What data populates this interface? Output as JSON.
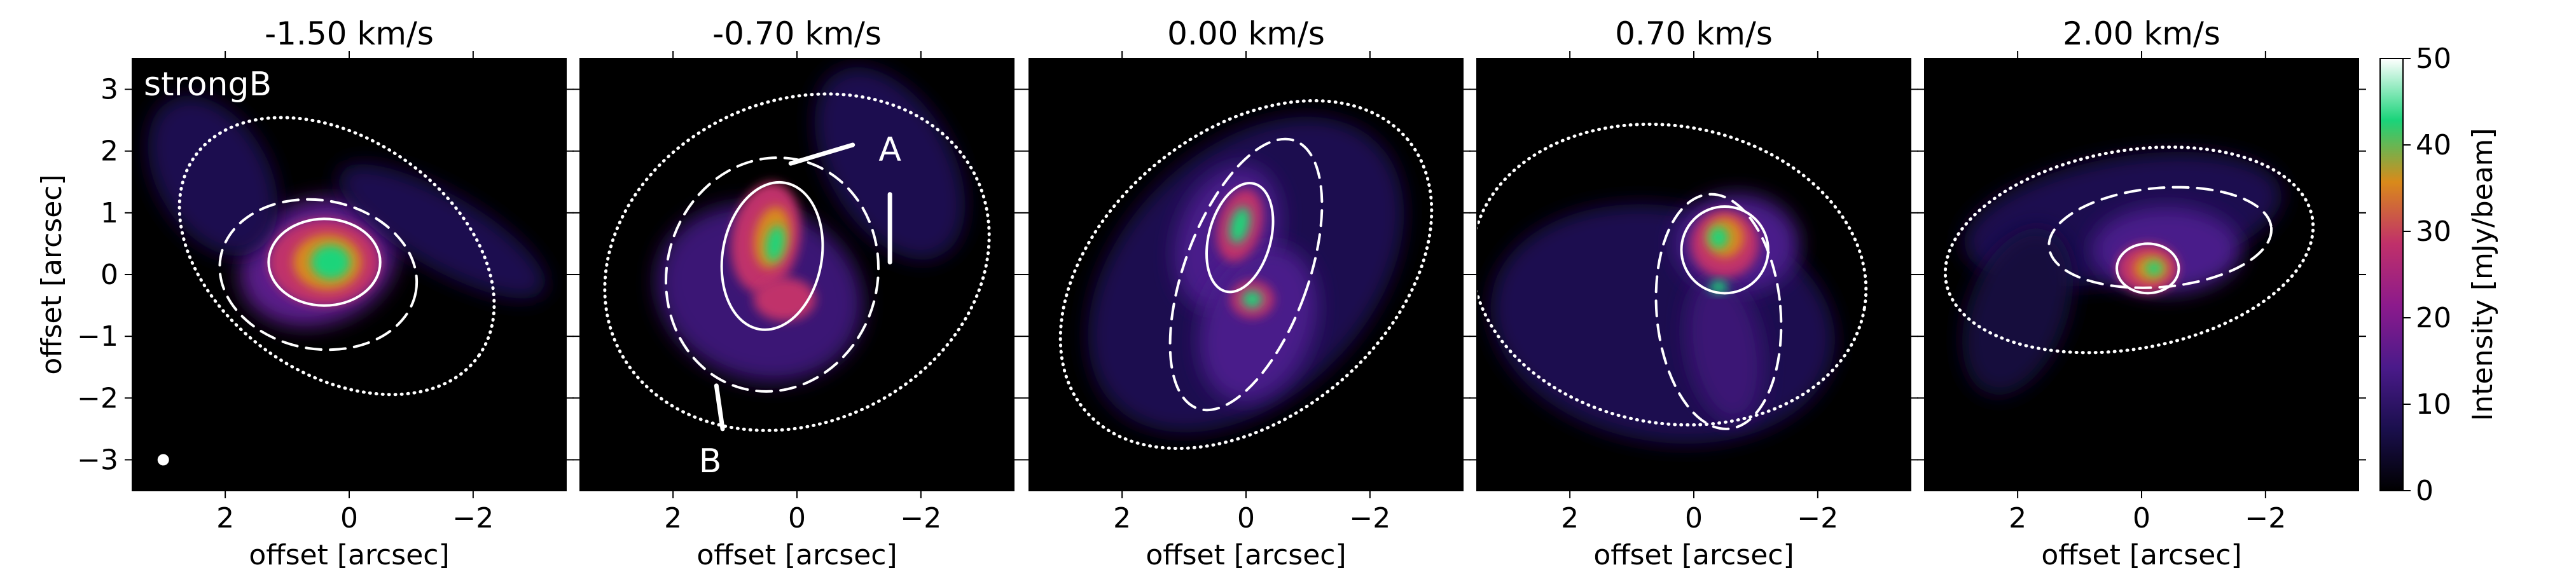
{
  "chart_data": {
    "type": "heatmap",
    "panels": [
      {
        "title": "-1.50 km/s",
        "velocity": -1.5,
        "annotation": "strongB"
      },
      {
        "title": "-0.70 km/s",
        "velocity": -0.7,
        "annotation": ""
      },
      {
        "title": "0.00 km/s",
        "velocity": 0.0,
        "annotation": ""
      },
      {
        "title": "0.70 km/s",
        "velocity": 0.7,
        "annotation": ""
      },
      {
        "title": "2.00 km/s",
        "velocity": 2.0,
        "annotation": ""
      }
    ],
    "xlabel": "offset [arcsec]",
    "ylabel": "offset [arcsec]",
    "xlim": [
      3.5,
      -3.5
    ],
    "ylim": [
      -3.5,
      3.5
    ],
    "xticks": [
      2,
      0,
      -2
    ],
    "xtick_labels": [
      "2",
      "0",
      "−2"
    ],
    "yticks": [
      3,
      2,
      1,
      0,
      -1,
      -2,
      -3
    ],
    "ytick_labels": [
      "3",
      "2",
      "1",
      "0",
      "−1",
      "−2",
      "−3"
    ],
    "colorbar": {
      "label": "Intensity [mJy/beam]",
      "range": [
        0,
        50
      ],
      "ticks": [
        0,
        10,
        20,
        30,
        40,
        50
      ],
      "tick_labels": [
        "0",
        "10",
        "20",
        "30",
        "40",
        "50"
      ],
      "colormap_stops": [
        "#000000",
        "#1a0f4d",
        "#4a1a8a",
        "#8c1a8c",
        "#c0306a",
        "#d98a1a",
        "#1ad47a",
        "#ffffff"
      ]
    },
    "features": [
      {
        "label": "A",
        "panel": 1
      },
      {
        "label": "B",
        "panel": 1
      }
    ],
    "beam_marker": {
      "panel": 0,
      "x": 3.0,
      "y": -3.0
    },
    "contour_styles": [
      "dotted",
      "dashed",
      "solid"
    ],
    "grid": false
  }
}
